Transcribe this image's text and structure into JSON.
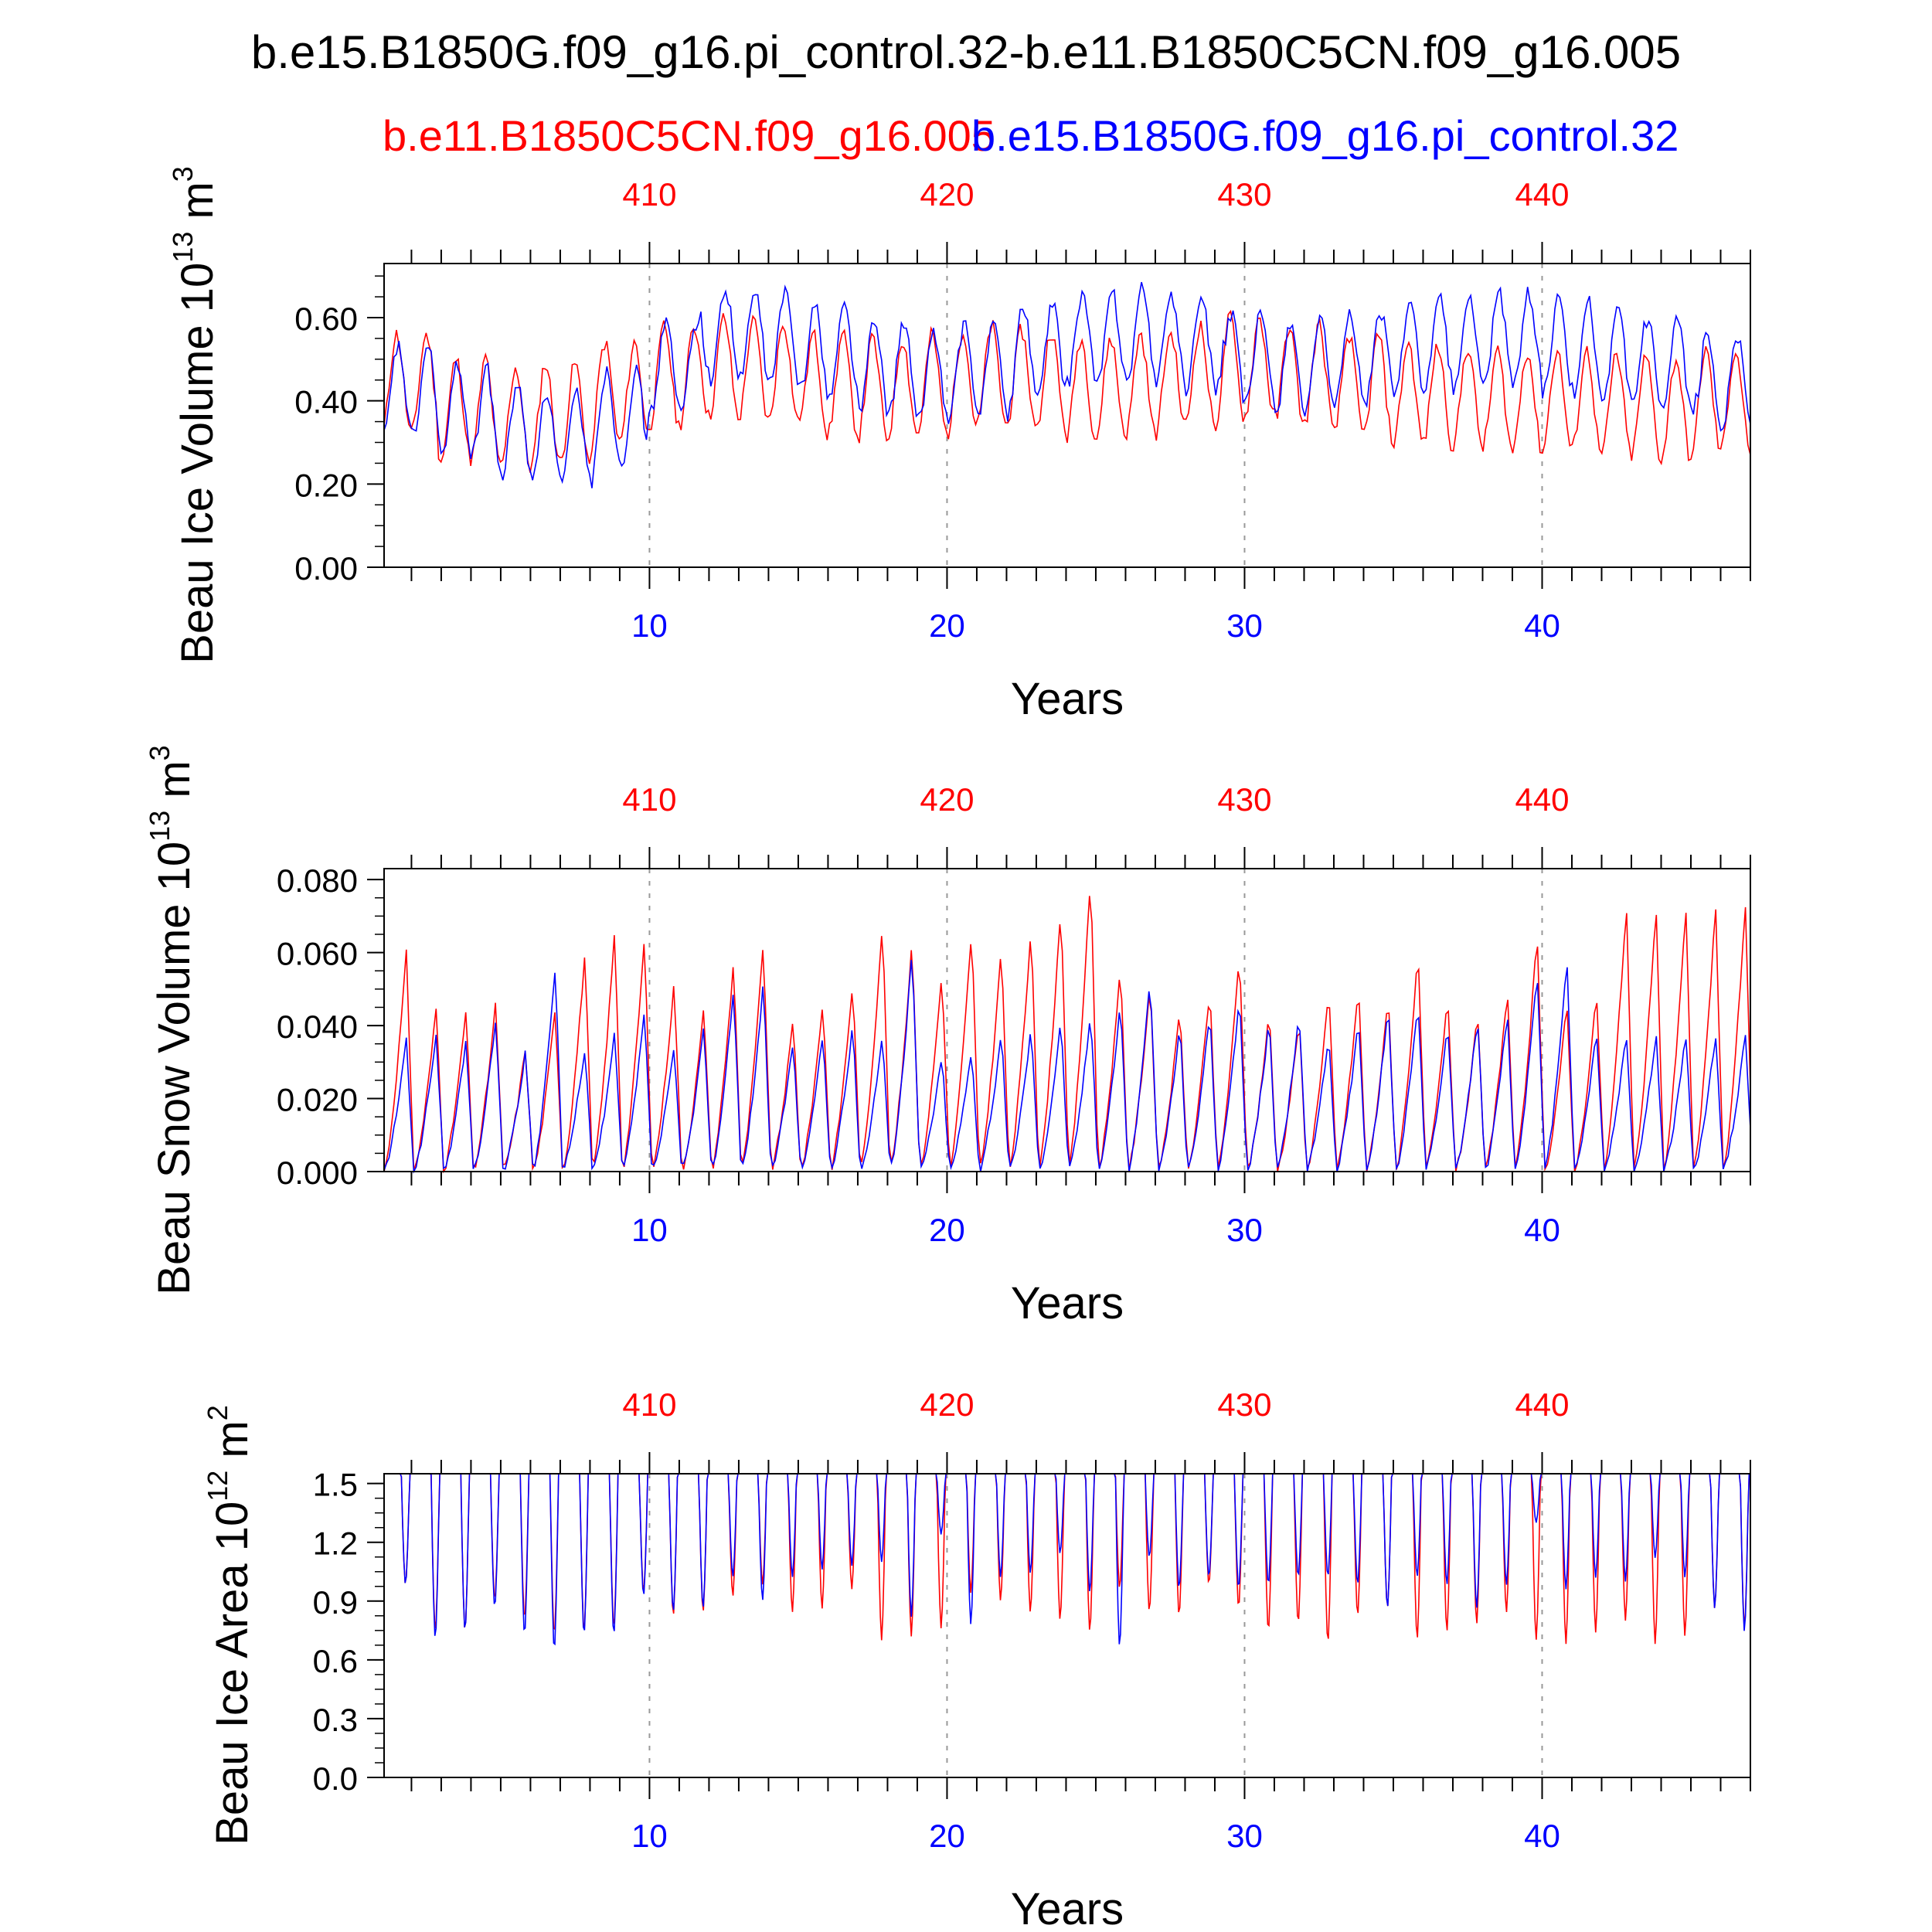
{
  "title": "b.e15.B1850G.f09_g16.pi_control.32-b.e11.B1850C5CN.f09_g16.005",
  "legend": {
    "left": "b.e11.B1850C5CN.f09_g16.005",
    "right": "b.e15.B1850G.f09_g16.pi_control.32"
  },
  "colors": {
    "red": "#ff0000",
    "blue": "#0000ff",
    "axis": "#000000",
    "grid": "#999999"
  },
  "chart_data": [
    {
      "type": "line",
      "ylabel_main": "Beau Ice Volume 10",
      "ylabel_exp": "13",
      "ylabel_unit": " m",
      "ylabel_unit_exp": "3",
      "xlabel": "Years",
      "xlim": [
        1.08,
        47.0
      ],
      "ylim": [
        0.0,
        0.73
      ],
      "yticks": [
        0.0,
        0.2,
        0.4,
        0.6
      ],
      "ytick_labels": [
        "0.00",
        "0.20",
        "0.40",
        "0.60"
      ],
      "ytick_minor": 0.05,
      "bottom_ticks": [
        10,
        20,
        30,
        40
      ],
      "top_tick_labels": [
        "410",
        "420",
        "430",
        "440"
      ],
      "grid": "dashed verticals at 10, 20, 30, 40",
      "series": [
        {
          "color": "red",
          "mean": 0.44,
          "amp": 0.12,
          "phase": 0.0,
          "envelope": [
            0.44,
            0.38,
            0.36,
            0.37,
            0.42,
            0.46,
            0.48,
            0.47,
            0.44,
            0.43,
            0.44,
            0.46,
            0.45,
            0.43,
            0.44,
            0.46,
            0.48,
            0.46,
            0.44,
            0.42,
            0.41,
            0.4,
            0.4,
            0.39,
            0.38,
            0.4
          ]
        },
        {
          "color": "blue",
          "mean": 0.42,
          "amp": 0.11,
          "phase": 0.05,
          "envelope": [
            0.42,
            0.38,
            0.33,
            0.31,
            0.36,
            0.48,
            0.56,
            0.55,
            0.52,
            0.48,
            0.46,
            0.48,
            0.52,
            0.55,
            0.56,
            0.54,
            0.5,
            0.48,
            0.5,
            0.53,
            0.54,
            0.55,
            0.53,
            0.5,
            0.48,
            0.45
          ]
        }
      ]
    },
    {
      "type": "line",
      "ylabel_main": "Beau Snow Volume 10",
      "ylabel_exp": "13",
      "ylabel_unit": " m",
      "ylabel_unit_exp": "3",
      "xlabel": "Years",
      "xlim": [
        1.08,
        47.0
      ],
      "ylim": [
        0.0,
        0.083
      ],
      "yticks": [
        0.0,
        0.02,
        0.04,
        0.06,
        0.08
      ],
      "ytick_labels": [
        "0.000",
        "0.020",
        "0.040",
        "0.060",
        "0.080"
      ],
      "ytick_minor": 0.005,
      "bottom_ticks": [
        10,
        20,
        30,
        40
      ],
      "top_tick_labels": [
        "410",
        "420",
        "430",
        "440"
      ],
      "grid": "dashed verticals at 10, 20, 30, 40",
      "peaks_red": [
        0.06,
        0.045,
        0.044,
        0.046,
        0.034,
        0.045,
        0.06,
        0.066,
        0.064,
        0.052,
        0.045,
        0.058,
        0.063,
        0.042,
        0.047,
        0.052,
        0.069,
        0.064,
        0.055,
        0.067,
        0.062,
        0.068,
        0.074,
        0.082,
        0.056,
        0.052,
        0.045,
        0.05,
        0.06,
        0.044,
        0.042,
        0.05,
        0.051,
        0.048,
        0.06,
        0.048,
        0.043,
        0.05,
        0.065,
        0.046,
        0.049,
        0.073
      ],
      "peaks_blue": [
        0.036,
        0.038,
        0.036,
        0.042,
        0.033,
        0.056,
        0.034,
        0.038,
        0.044,
        0.034,
        0.04,
        0.05,
        0.052,
        0.036,
        0.038,
        0.04,
        0.038,
        0.061,
        0.032,
        0.034,
        0.038,
        0.04,
        0.042,
        0.044,
        0.047,
        0.053,
        0.04,
        0.044,
        0.048,
        0.042,
        0.044,
        0.038,
        0.042,
        0.046,
        0.047,
        0.04,
        0.043,
        0.044,
        0.056,
        0.059,
        0.039,
        0.038
      ]
    },
    {
      "type": "line",
      "ylabel_main": "Beau Ice Area 10",
      "ylabel_exp": "12",
      "ylabel_unit": " m",
      "ylabel_unit_exp": "2",
      "xlabel": "Years",
      "xlim": [
        1.08,
        47.0
      ],
      "ylim": [
        0.0,
        1.55
      ],
      "yticks": [
        0.0,
        0.3,
        0.6,
        0.9,
        1.2,
        1.5
      ],
      "ytick_labels": [
        "0.0",
        "0.3",
        "0.6",
        "0.9",
        "1.2",
        "1.5"
      ],
      "ytick_minor": 0.075,
      "bottom_ticks": [
        10,
        20,
        30,
        40
      ],
      "top_tick_labels": [
        "410",
        "420",
        "430",
        "440"
      ],
      "grid": "dashed verticals at 10, 20, 30, 40",
      "max_value": 1.55,
      "minima_red": [
        0.98,
        0.74,
        0.74,
        0.9,
        0.8,
        0.72,
        0.74,
        0.76,
        0.94,
        0.82,
        0.84,
        0.92,
        0.98,
        0.84,
        0.86,
        0.96,
        0.7,
        0.72,
        0.76,
        0.94,
        0.9,
        0.84,
        0.8,
        0.74,
        0.96,
        0.84,
        0.82,
        0.98,
        0.86,
        0.74,
        0.78,
        0.68,
        0.82,
        0.86,
        0.7,
        0.74,
        0.78,
        0.84,
        0.7,
        0.68,
        0.74,
        0.8,
        0.68,
        0.72,
        0.86,
        0.76
      ],
      "minima_blue": [
        0.98,
        0.7,
        0.74,
        0.86,
        0.72,
        0.64,
        0.72,
        0.72,
        0.92,
        0.84,
        0.86,
        1.02,
        0.9,
        1.02,
        1.06,
        1.08,
        1.1,
        0.82,
        1.24,
        0.78,
        1.02,
        1.04,
        1.14,
        0.94,
        0.66,
        1.12,
        0.96,
        1.02,
        0.96,
        0.98,
        1.02,
        1.02,
        0.98,
        0.86,
        1.02,
        0.98,
        0.86,
        0.98,
        1.3,
        0.96,
        1.02,
        1.0,
        1.12,
        1.02,
        0.86,
        0.74
      ]
    }
  ]
}
